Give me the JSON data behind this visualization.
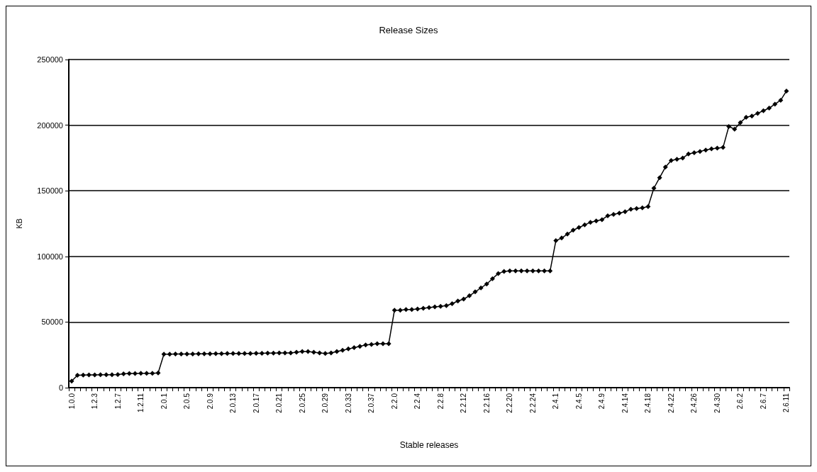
{
  "chart_data": {
    "type": "line",
    "title": "Release Sizes",
    "xlabel": "Stable releases",
    "ylabel": "KB",
    "categories": [
      "1.0.0",
      null,
      null,
      null,
      "1.2.3",
      null,
      null,
      null,
      "1.2.7",
      null,
      null,
      null,
      "1.2.11",
      null,
      null,
      null,
      "2.0.1",
      null,
      null,
      null,
      "2.0.5",
      null,
      null,
      null,
      "2.0.9",
      null,
      null,
      null,
      "2.0.13",
      null,
      null,
      null,
      "2.0.17",
      null,
      null,
      null,
      "2.0.21",
      null,
      null,
      null,
      "2.0.25",
      null,
      null,
      null,
      "2.0.29",
      null,
      null,
      null,
      "2.0.33",
      null,
      null,
      null,
      "2.0.37",
      null,
      null,
      null,
      "2.2.0",
      null,
      null,
      null,
      "2.2.4",
      null,
      null,
      null,
      "2.2.8",
      null,
      null,
      null,
      "2.2.12",
      null,
      null,
      null,
      "2.2.16",
      null,
      null,
      null,
      "2.2.20",
      null,
      null,
      null,
      "2.2.24",
      null,
      null,
      null,
      "2.4.1",
      null,
      null,
      null,
      "2.4.5",
      null,
      null,
      null,
      "2.4.9",
      null,
      null,
      null,
      "2.4.14",
      null,
      null,
      null,
      "2.4.18",
      null,
      null,
      null,
      "2.4.22",
      null,
      null,
      null,
      "2.4.26",
      null,
      null,
      null,
      "2.4.30",
      null,
      null,
      null,
      "2.6.2",
      null,
      null,
      null,
      "2.6.7",
      null,
      null,
      null,
      "2.6.11"
    ],
    "series": [
      {
        "color": "#000000",
        "values": [
          5000,
          9500,
          9600,
          9700,
          9700,
          9800,
          9800,
          9800,
          10000,
          10500,
          10800,
          10800,
          11000,
          11000,
          11000,
          11200,
          25500,
          25500,
          25600,
          25600,
          25700,
          25700,
          25800,
          25800,
          25800,
          25900,
          25900,
          26000,
          26000,
          26000,
          26100,
          26100,
          26200,
          26200,
          26300,
          26300,
          26400,
          26400,
          26500,
          27000,
          27500,
          27500,
          27000,
          26500,
          26000,
          26500,
          27500,
          28500,
          29500,
          30500,
          31500,
          32500,
          33000,
          33500,
          33500,
          33500,
          59000,
          59000,
          59500,
          59500,
          60000,
          60500,
          61000,
          61500,
          62000,
          62500,
          64000,
          66000,
          67500,
          70000,
          73000,
          76000,
          79000,
          83000,
          87000,
          88500,
          89000,
          89000,
          89000,
          89000,
          89000,
          89000,
          89000,
          89000,
          112000,
          114000,
          117000,
          120000,
          122000,
          124000,
          126000,
          127000,
          128000,
          131000,
          132000,
          133000,
          134000,
          136000,
          136500,
          137000,
          138000,
          152000,
          160000,
          168000,
          173000,
          174000,
          175000,
          178000,
          179000,
          180000,
          181000,
          182000,
          182500,
          183000,
          199000,
          197000,
          202000,
          206000,
          207000,
          209000,
          211000,
          213000,
          216000,
          219000,
          226000
        ]
      }
    ],
    "ylim": [
      0,
      250000
    ],
    "yticks": [
      0,
      50000,
      100000,
      150000,
      200000,
      250000
    ],
    "grid": "y",
    "marker": "diamond",
    "line_style": "solid"
  }
}
